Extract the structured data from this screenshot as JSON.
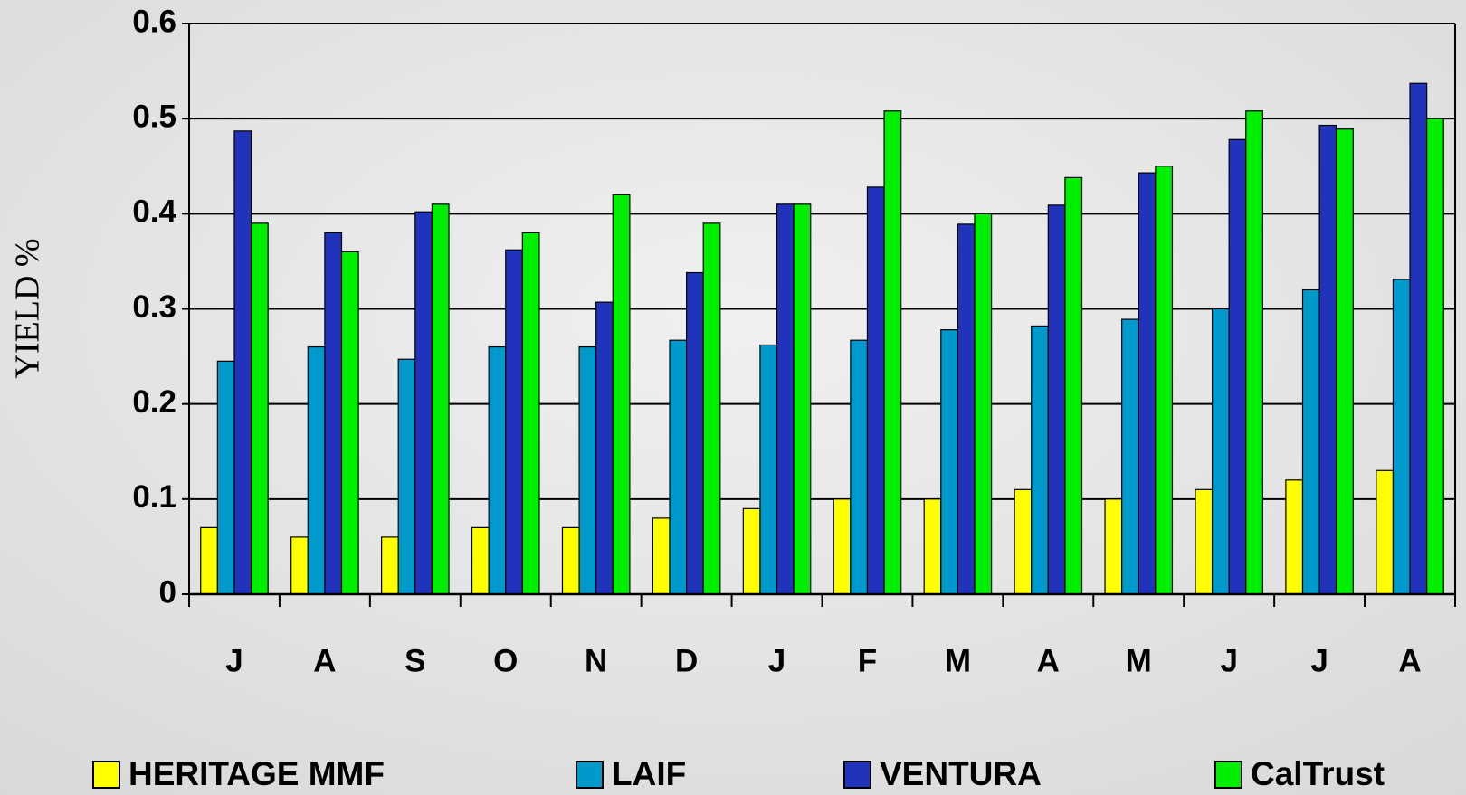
{
  "chart_data": {
    "type": "bar",
    "y_label": "YIELD %",
    "categories": [
      "J",
      "A",
      "S",
      "O",
      "N",
      "D",
      "J",
      "F",
      "M",
      "A",
      "M",
      "J",
      "J",
      "A"
    ],
    "series": [
      {
        "name": "HERITAGE MMF",
        "color": "#ffff00",
        "values": [
          0.07,
          0.06,
          0.06,
          0.07,
          0.07,
          0.08,
          0.09,
          0.1,
          0.1,
          0.11,
          0.1,
          0.11,
          0.12,
          0.13
        ]
      },
      {
        "name": "LAIF",
        "color": "#0099cc",
        "values": [
          0.245,
          0.26,
          0.247,
          0.26,
          0.26,
          0.267,
          0.262,
          0.267,
          0.278,
          0.282,
          0.289,
          0.3,
          0.32,
          0.331
        ]
      },
      {
        "name": "VENTURA",
        "color": "#2233bb",
        "values": [
          0.487,
          0.38,
          0.402,
          0.362,
          0.307,
          0.338,
          0.41,
          0.428,
          0.389,
          0.409,
          0.443,
          0.478,
          0.493,
          0.537
        ]
      },
      {
        "name": "CalTrust",
        "color": "#00ee00",
        "values": [
          0.39,
          0.36,
          0.41,
          0.38,
          0.42,
          0.39,
          0.41,
          0.508,
          0.4,
          0.438,
          0.45,
          0.508,
          0.489,
          0.5
        ]
      }
    ],
    "ylim": [
      0,
      0.6
    ],
    "yticks": [
      0,
      0.1,
      0.2,
      0.3,
      0.4,
      0.5,
      0.6
    ],
    "grid": true,
    "legend": "bottom"
  }
}
